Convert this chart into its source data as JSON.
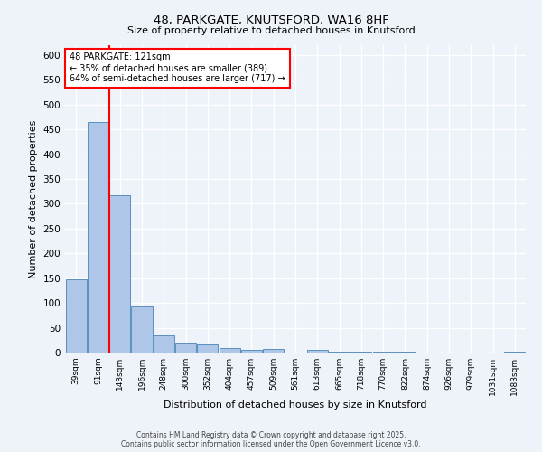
{
  "title_line1": "48, PARKGATE, KNUTSFORD, WA16 8HF",
  "title_line2": "Size of property relative to detached houses in Knutsford",
  "xlabel": "Distribution of detached houses by size in Knutsford",
  "ylabel": "Number of detached properties",
  "categories": [
    "39sqm",
    "91sqm",
    "143sqm",
    "196sqm",
    "248sqm",
    "300sqm",
    "352sqm",
    "404sqm",
    "457sqm",
    "509sqm",
    "561sqm",
    "613sqm",
    "665sqm",
    "718sqm",
    "770sqm",
    "822sqm",
    "874sqm",
    "926sqm",
    "979sqm",
    "1031sqm",
    "1083sqm"
  ],
  "values": [
    148,
    465,
    318,
    93,
    35,
    20,
    17,
    10,
    5,
    8,
    0,
    5,
    2,
    1,
    1,
    1,
    0,
    0,
    0,
    0,
    1
  ],
  "bar_color": "#aec6e8",
  "bar_edge_color": "#5a8fbe",
  "red_line_index": 1.5,
  "annotation_title": "48 PARKGATE: 121sqm",
  "annotation_line1": "← 35% of detached houses are smaller (389)",
  "annotation_line2": "64% of semi-detached houses are larger (717) →",
  "ylim": [
    0,
    620
  ],
  "yticks": [
    0,
    50,
    100,
    150,
    200,
    250,
    300,
    350,
    400,
    450,
    500,
    550,
    600
  ],
  "background_color": "#eef2f9",
  "grid_color": "#ffffff",
  "footer_line1": "Contains HM Land Registry data © Crown copyright and database right 2025.",
  "footer_line2": "Contains public sector information licensed under the Open Government Licence v3.0."
}
